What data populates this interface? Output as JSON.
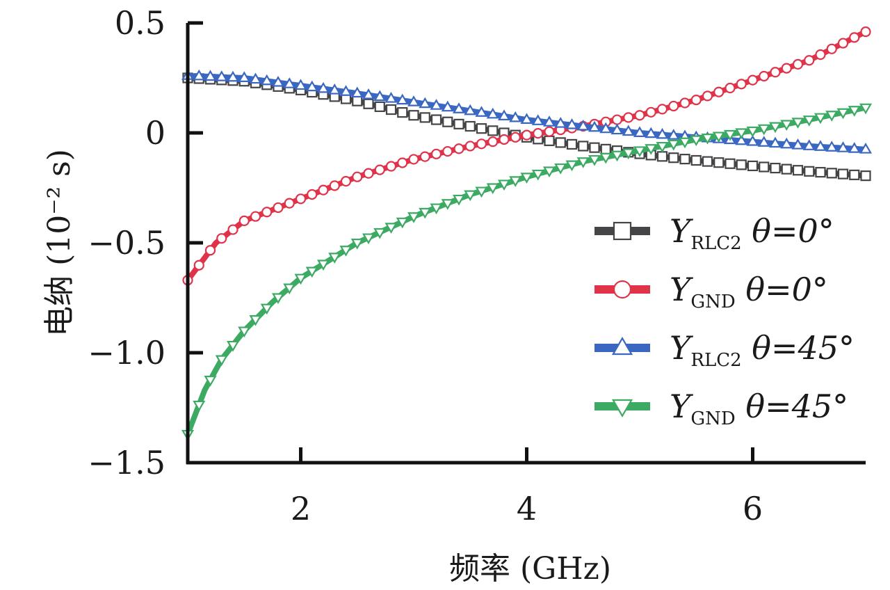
{
  "chart_data": {
    "type": "line",
    "xlabel": "频率 (GHz)",
    "ylabel": "电纳 (10⁻² s)",
    "xlim": [
      1,
      7
    ],
    "ylim": [
      -1.5,
      0.5
    ],
    "xticks": [
      2,
      4,
      6
    ],
    "xtick_labels": [
      "2",
      "4",
      "6"
    ],
    "yticks": [
      0.5,
      0,
      -0.5,
      -1.0,
      -1.5
    ],
    "ytick_labels": [
      "0.5",
      "0",
      "−0.5",
      "−1.0",
      "−1.5"
    ],
    "grid": false,
    "legend_position": "right",
    "series": [
      {
        "legend": {
          "symbol": "Y",
          "sub": "RLC2",
          "suffix": " θ=0°"
        },
        "color": "#454548",
        "marker": "square",
        "x": [
          1.0,
          1.5,
          2.0,
          2.5,
          3.0,
          3.5,
          4.0,
          4.5,
          5.0,
          5.5,
          6.0,
          6.5,
          7.0
        ],
        "y": [
          0.25,
          0.235,
          0.195,
          0.145,
          0.08,
          0.03,
          -0.02,
          -0.06,
          -0.095,
          -0.125,
          -0.15,
          -0.175,
          -0.195
        ]
      },
      {
        "legend": {
          "symbol": "Y",
          "sub": "GND",
          "suffix": " θ=0°"
        },
        "color": "#e0334a",
        "marker": "circle",
        "x": [
          1.0,
          1.25,
          1.5,
          2.0,
          2.5,
          3.0,
          3.5,
          4.0,
          4.5,
          5.0,
          5.5,
          6.0,
          6.5,
          7.0
        ],
        "y": [
          -0.67,
          -0.5,
          -0.4,
          -0.3,
          -0.2,
          -0.12,
          -0.06,
          -0.01,
          0.03,
          0.08,
          0.15,
          0.24,
          0.33,
          0.46
        ]
      },
      {
        "legend": {
          "symbol": "Y",
          "sub": "RLC2",
          "suffix": " θ=45°"
        },
        "color": "#3a67c2",
        "marker": "triangle-up",
        "x": [
          1.0,
          1.5,
          2.0,
          2.5,
          3.0,
          3.5,
          4.0,
          4.5,
          5.0,
          5.5,
          6.0,
          6.5,
          7.0
        ],
        "y": [
          0.26,
          0.25,
          0.215,
          0.18,
          0.14,
          0.1,
          0.06,
          0.03,
          0.0,
          -0.02,
          -0.04,
          -0.06,
          -0.075
        ]
      },
      {
        "legend": {
          "symbol": "Y",
          "sub": "GND",
          "suffix": " θ=45°"
        },
        "color": "#3daa64",
        "marker": "triangle-down",
        "x": [
          1.0,
          1.15,
          1.3,
          1.5,
          1.75,
          2.0,
          2.5,
          3.0,
          3.5,
          4.0,
          4.5,
          5.0,
          5.5,
          6.0,
          6.5,
          7.0
        ],
        "y": [
          -1.37,
          -1.17,
          -1.03,
          -0.9,
          -0.77,
          -0.66,
          -0.5,
          -0.38,
          -0.28,
          -0.2,
          -0.13,
          -0.08,
          -0.03,
          0.01,
          0.06,
          0.115
        ]
      }
    ]
  }
}
